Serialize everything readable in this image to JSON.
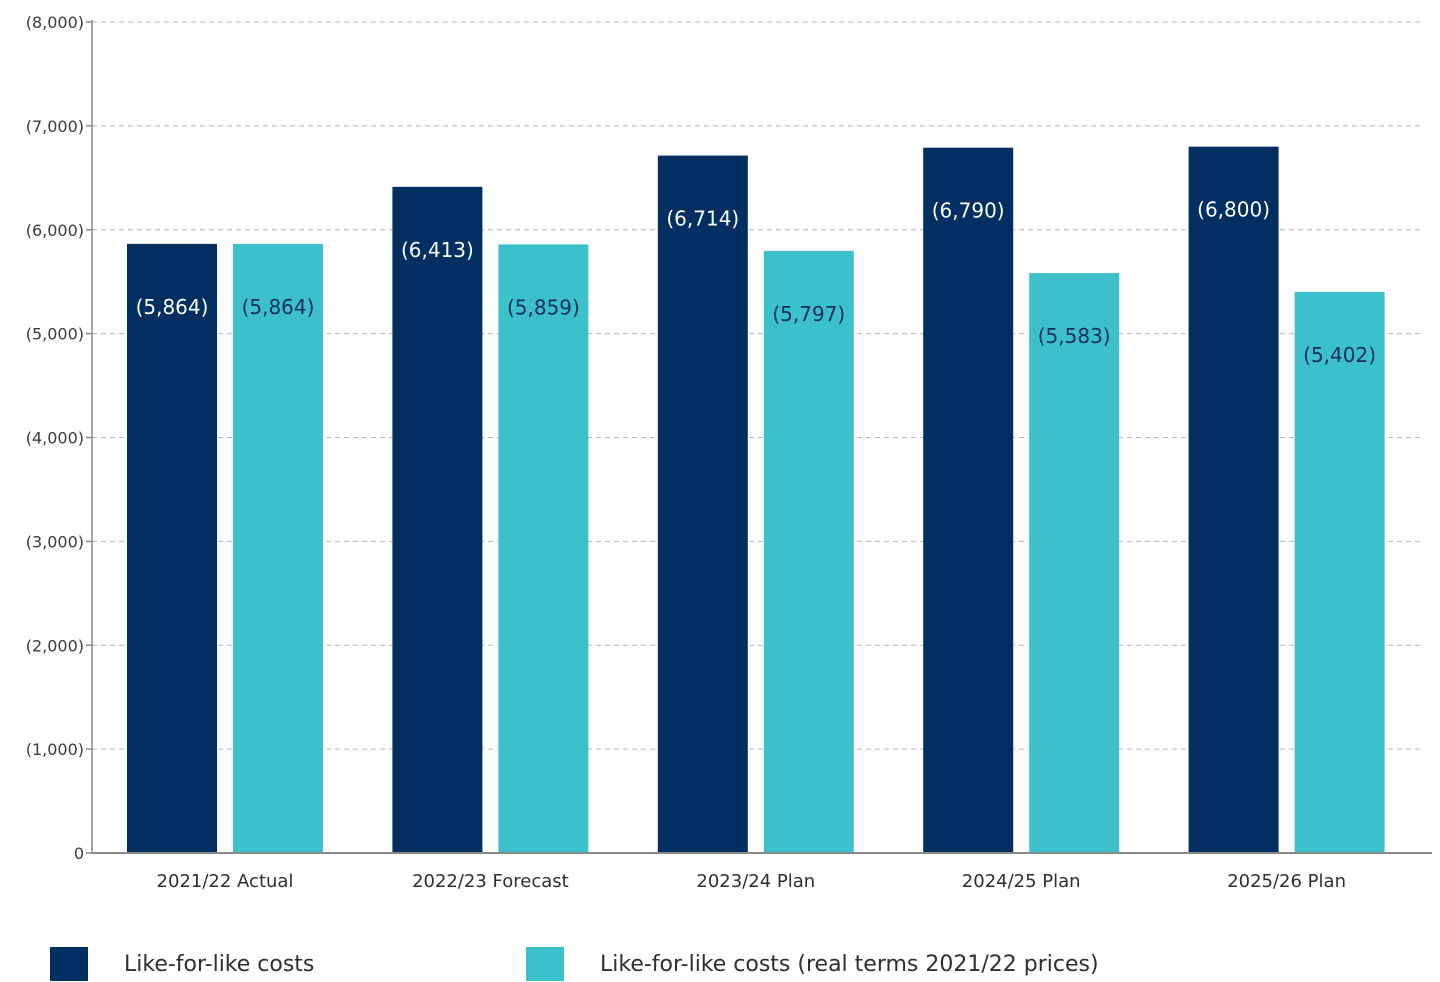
{
  "chart_data": {
    "type": "bar",
    "categories": [
      "2021/22 Actual",
      "2022/23 Forecast",
      "2023/24 Plan",
      "2024/25 Plan",
      "2025/26 Plan"
    ],
    "series": [
      {
        "name": "Like-for-like costs",
        "color": "#012f61",
        "values": [
          5864,
          6413,
          6714,
          6790,
          6800
        ],
        "labels": [
          "(5,864)",
          "(6,413)",
          "(6,714)",
          "(6,790)",
          "(6,800)"
        ]
      },
      {
        "name": "Like-for-like costs (real terms 2021/22 prices)",
        "color": "#3cc0cb",
        "values": [
          5864,
          5859,
          5797,
          5583,
          5402
        ],
        "labels": [
          "(5,864)",
          "(5,859)",
          "(5,797)",
          "(5,583)",
          "(5,402)"
        ]
      }
    ],
    "ylim": [
      0,
      8000
    ],
    "yticks": [
      0,
      1000,
      2000,
      3000,
      4000,
      5000,
      6000,
      7000,
      8000
    ],
    "ytick_labels": [
      "0",
      "(1,000)",
      "(2,000)",
      "(3,000)",
      "(4,000)",
      "(5,000)",
      "(6,000)",
      "(7,000)",
      "(8,000)"
    ],
    "grid": true,
    "legend_position": "bottom",
    "label_colors": {
      "on_dark": "#ffffff",
      "on_light": "#0b2f5f"
    },
    "axis_color": "#8a8a8a",
    "grid_color": "#b5b5b5"
  },
  "legend": {
    "items": [
      {
        "label": "Like-for-like costs",
        "color": "#012f61"
      },
      {
        "label": "Like-for-like costs (real terms 2021/22 prices)",
        "color": "#3cc0cb"
      }
    ]
  }
}
